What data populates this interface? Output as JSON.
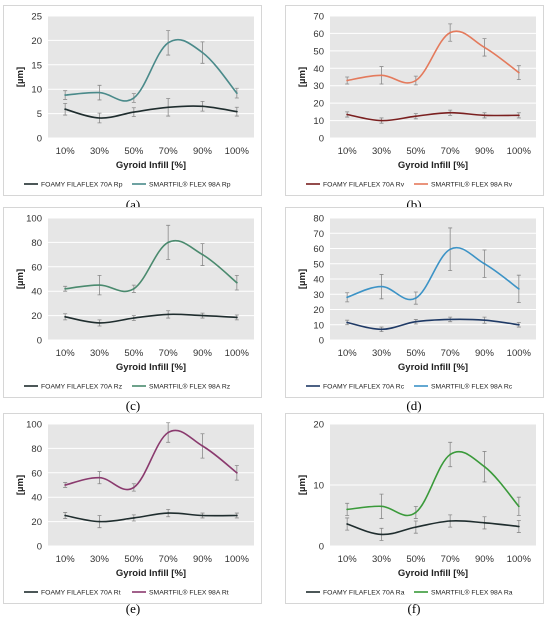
{
  "chart_data": [
    {
      "type": "line",
      "panel_label": "(a)",
      "xlabel": "Gyroid Infill [%]",
      "ylabel": "[µm]",
      "categories": [
        "10%",
        "30%",
        "50%",
        "70%",
        "90%",
        "100%"
      ],
      "ylim": [
        0,
        25
      ],
      "yticks": [
        0,
        5,
        10,
        15,
        20,
        25
      ],
      "legend_placement": "bottom",
      "series": [
        {
          "name": "FOAMY FILAFLEX 70A Rp",
          "color": "#1f2d2e",
          "values": [
            5.9,
            4.1,
            5.3,
            6.3,
            6.5,
            5.4
          ],
          "err": [
            1.2,
            1.0,
            0.9,
            1.8,
            1.0,
            0.9
          ]
        },
        {
          "name": "SMARTFIL® FLEX 98A Rp",
          "color": "#4a8a8a",
          "values": [
            8.8,
            9.3,
            8.2,
            19.5,
            17.5,
            9.2
          ],
          "err": [
            0.9,
            1.5,
            0.9,
            2.5,
            2.2,
            1.0
          ]
        }
      ]
    },
    {
      "type": "line",
      "panel_label": "(b)",
      "xlabel": "Gyroid Infill [%]",
      "ylabel": "[µm]",
      "categories": [
        "10%",
        "30%",
        "50%",
        "70%",
        "90%",
        "100%"
      ],
      "ylim": [
        0,
        70
      ],
      "yticks": [
        0,
        10,
        20,
        30,
        40,
        50,
        60,
        70
      ],
      "legend_placement": "bottom",
      "series": [
        {
          "name": "FOAMY FILAFLEX 70A Rv",
          "color": "#7a1f1f",
          "values": [
            13.5,
            10.0,
            12.5,
            14.5,
            13.0,
            13.0
          ],
          "err": [
            1.5,
            1.5,
            1.5,
            1.5,
            1.5,
            1.5
          ]
        },
        {
          "name": "SMARTFIL® FLEX 98A Rv",
          "color": "#e47a5c",
          "values": [
            33.0,
            36.0,
            33.0,
            60.5,
            52.0,
            37.5
          ],
          "err": [
            2.0,
            5.0,
            2.5,
            5.0,
            5.0,
            4.0
          ]
        }
      ]
    },
    {
      "type": "line",
      "panel_label": "(c)",
      "xlabel": "Gyroid Infill [%]",
      "ylabel": "[µm]",
      "categories": [
        "10%",
        "30%",
        "50%",
        "70%",
        "90%",
        "100%"
      ],
      "ylim": [
        0,
        100
      ],
      "yticks": [
        0,
        20,
        40,
        60,
        80,
        100
      ],
      "legend_placement": "bottom",
      "series": [
        {
          "name": "FOAMY FILAFLEX 70A Rz",
          "color": "#1f2d2e",
          "values": [
            19.0,
            14.0,
            18.0,
            21.0,
            20.0,
            18.5
          ],
          "err": [
            2.5,
            2.5,
            2.0,
            3.0,
            2.0,
            2.0
          ]
        },
        {
          "name": "SMARTFIL® FLEX 98A Rz",
          "color": "#4a8a6e",
          "values": [
            42.0,
            45.0,
            42.0,
            80.0,
            70.0,
            47.0
          ],
          "err": [
            2.0,
            8.0,
            3.0,
            14.0,
            9.0,
            6.0
          ]
        }
      ]
    },
    {
      "type": "line",
      "panel_label": "(d)",
      "xlabel": "Gyroid Infill [%]",
      "ylabel": "[µm]",
      "categories": [
        "10%",
        "30%",
        "50%",
        "70%",
        "90%",
        "100%"
      ],
      "ylim": [
        0,
        80
      ],
      "yticks": [
        0,
        10,
        20,
        30,
        40,
        50,
        60,
        70,
        80
      ],
      "legend_placement": "bottom",
      "series": [
        {
          "name": "FOAMY FILAFLEX 70A Rc",
          "color": "#1f3a66",
          "values": [
            11.5,
            7.0,
            12.0,
            13.5,
            13.0,
            10.0
          ],
          "err": [
            1.5,
            1.5,
            1.5,
            1.5,
            2.0,
            1.5
          ]
        },
        {
          "name": "SMARTFIL® FLEX 98A Rc",
          "color": "#3c93c6",
          "values": [
            28.0,
            35.0,
            27.5,
            59.5,
            50.0,
            33.5
          ],
          "err": [
            3.0,
            8.0,
            4.0,
            14.0,
            9.0,
            9.0
          ]
        }
      ]
    },
    {
      "type": "line",
      "panel_label": "(e)",
      "xlabel": "Gyroid Infill [%]",
      "ylabel": "[µm]",
      "categories": [
        "10%",
        "30%",
        "50%",
        "70%",
        "90%",
        "100%"
      ],
      "ylim": [
        0,
        100
      ],
      "yticks": [
        0,
        20,
        40,
        60,
        80,
        100
      ],
      "legend_placement": "bottom",
      "series": [
        {
          "name": "FOAMY FILAFLEX 70A Rt",
          "color": "#1f2d2e",
          "values": [
            25.0,
            20.0,
            23.0,
            27.0,
            25.0,
            25.0
          ],
          "err": [
            2.5,
            5.0,
            2.5,
            3.0,
            2.0,
            2.0
          ]
        },
        {
          "name": "SMARTFIL® FLEX 98A Rt",
          "color": "#8a3a6e",
          "values": [
            50.0,
            56.0,
            48.0,
            93.0,
            82.0,
            60.0
          ],
          "err": [
            2.0,
            5.0,
            3.0,
            8.0,
            10.0,
            6.0
          ]
        }
      ]
    },
    {
      "type": "line",
      "panel_label": "(f)",
      "xlabel": "Gyroid Infill [%]",
      "ylabel": "[µm]",
      "categories": [
        "10%",
        "30%",
        "50%",
        "70%",
        "90%",
        "100%"
      ],
      "ylim": [
        0,
        20
      ],
      "yticks": [
        0,
        10,
        20
      ],
      "legend_placement": "bottom",
      "series": [
        {
          "name": "FOAMY FILAFLEX 70A Ra",
          "color": "#1f2d2e",
          "values": [
            3.6,
            1.9,
            3.1,
            4.1,
            3.8,
            3.2
          ],
          "err": [
            1.0,
            1.0,
            1.0,
            1.0,
            1.0,
            1.0
          ]
        },
        {
          "name": "SMARTFIL® FLEX 98A Ra",
          "color": "#3a9a3a",
          "values": [
            6.0,
            6.5,
            5.5,
            15.0,
            13.0,
            6.5
          ],
          "err": [
            1.0,
            2.0,
            1.0,
            2.0,
            2.5,
            1.5
          ]
        }
      ]
    }
  ]
}
